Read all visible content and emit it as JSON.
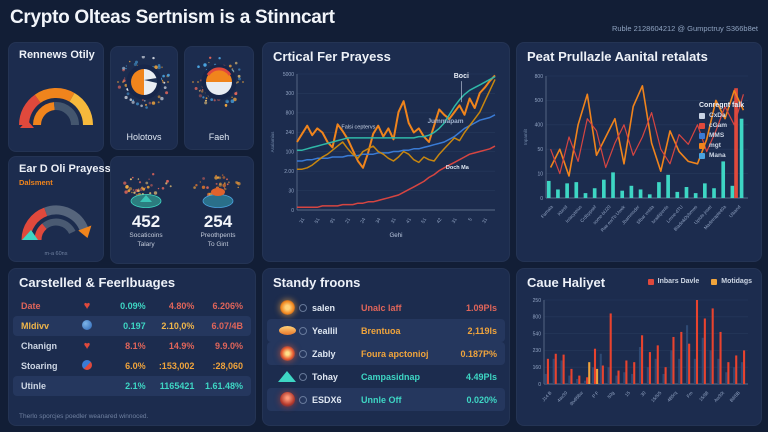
{
  "header": {
    "title": "Crypto Olteas Sertnism is a Stinncart",
    "meta": "Ruble 2128604212 @ Gumpctruy S366b8et"
  },
  "panels": {
    "renews": {
      "title": "Rennews Otily"
    },
    "eard": {
      "title": "Ear D Oli Prayess",
      "subtitle": "Dalsment",
      "caption": "m-a 60ns"
    },
    "emblems": [
      {
        "label": "Holotovs"
      },
      {
        "label": "Faeh"
      }
    ],
    "stats": [
      {
        "value": "452",
        "label1": "Socaticoins",
        "label2": "Talary"
      },
      {
        "value": "254",
        "label1": "Preothpents",
        "label2": "To Gint"
      }
    ],
    "critical": {
      "title": "Crtical Fer Prayess"
    },
    "peat": {
      "title": "Peat Prullazle Aanital retalats",
      "legend_title": "Conregnt falk",
      "legend": [
        {
          "label": "CxDa",
          "color": "#c9d4e6"
        },
        {
          "label": "cGam",
          "color": "#e0493c"
        },
        {
          "label": "MMS",
          "color": "#3a7bd5"
        },
        {
          "label": "mgt",
          "color": "#f0841c"
        },
        {
          "label": "Mana",
          "color": "#4aa3df"
        }
      ]
    },
    "table": {
      "title": "Carstelled & Feerlbuages",
      "footer": "Therlo sporcjes poedler weanared winnoced.",
      "rows": [
        {
          "name": "Date",
          "name_color": "#e0655a",
          "c1": "0.09%",
          "c1_color": "#3ed6c4",
          "c2": "4.80%",
          "c2_color": "#e0655a",
          "c3": "6.206%",
          "c3_color": "#e0655a"
        },
        {
          "name": "Mldivv",
          "name_color": "#f0b64a",
          "c1": "0.197",
          "c1_color": "#3ed6c4",
          "c2": "2.10,0%",
          "c2_color": "#f0b64a",
          "c3": "6.07/4B",
          "c3_color": "#e0655a"
        },
        {
          "name": "Chanign",
          "name_color": "#cdd6e4",
          "c1": "8.1%",
          "c1_color": "#e0655a",
          "c2": "14.9%",
          "c2_color": "#e0655a",
          "c3": "9.9.0%",
          "c3_color": "#e0655a"
        },
        {
          "name": "Stoaring",
          "name_color": "#cdd6e4",
          "c1": "6.0%",
          "c1_color": "#f0a43c",
          "c2": ":153,002",
          "c2_color": "#f0a43c",
          "c3": ":28,060",
          "c3_color": "#f0a43c"
        },
        {
          "name": "Utinle",
          "name_color": "#cdd6e4",
          "c1": "2.1%",
          "c1_color": "#3ed6c4",
          "c2": "1165421",
          "c2_color": "#3ed6c4",
          "c3": "1.61.48%",
          "c3_color": "#3ed6c4"
        }
      ]
    },
    "standy": {
      "title": "Standy froons",
      "rows": [
        {
          "name": "salen",
          "desc": "Unalc laff",
          "value": "1.09Pls",
          "color": "#e0655a"
        },
        {
          "name": "Yeallil",
          "desc": "Brentuoa",
          "value": "2,119ls",
          "color": "#f0a43c"
        },
        {
          "name": "Zably",
          "desc": "Foura apctonioj",
          "value": "0.187P%",
          "color": "#f0a43c"
        },
        {
          "name": "Tohay",
          "desc": "Campasidnap",
          "value": "4.49Pls",
          "color": "#3ed6c4"
        },
        {
          "name": "ESDX6",
          "desc": "Unnle Off",
          "value": "0.020%",
          "color": "#3ed6c4"
        }
      ]
    },
    "caue": {
      "title": "Caue Haliyet",
      "legend": [
        {
          "label": "Inbars Davle",
          "color": "#e0493c"
        },
        {
          "label": "Motidags",
          "color": "#f0a43c"
        }
      ]
    }
  },
  "chart_data": [
    {
      "id": "critical",
      "type": "line",
      "title": "Crtical Fer Prayess",
      "xlabel": "Gehi",
      "ylabel": "Asalamias",
      "yticks": [
        "5000",
        "300",
        "800",
        "240",
        "100",
        "2.00",
        "30",
        "0"
      ],
      "xticks": [
        "31",
        "51",
        "91",
        "21",
        "24",
        "34",
        "31",
        "41",
        "51",
        "42",
        "31",
        "5",
        "31"
      ],
      "series": [
        {
          "name": "orange",
          "color": "#f0841c",
          "width": 2,
          "values": [
            50,
            56,
            62,
            55,
            60,
            57,
            50,
            46,
            63,
            58,
            52,
            44,
            36,
            31,
            42,
            56,
            62,
            54,
            60,
            52,
            72,
            80,
            64,
            57,
            60,
            54,
            50,
            62,
            74,
            70,
            67,
            72,
            77,
            70,
            82,
            75,
            86,
            90,
            95,
            99
          ]
        },
        {
          "name": "blue",
          "color": "#3a7bd5",
          "width": 1.5,
          "values": [
            36,
            36,
            37,
            37,
            38,
            38,
            38,
            39,
            39,
            39,
            40,
            40,
            40,
            41,
            41,
            41,
            42,
            42,
            42,
            43,
            43,
            44,
            44,
            45,
            45,
            46,
            47,
            48,
            49,
            50,
            52,
            54,
            57,
            60,
            62,
            64,
            66,
            67,
            68,
            70
          ]
        },
        {
          "name": "teal",
          "color": "#2fb8a8",
          "width": 1.5,
          "values": [
            44,
            44,
            45,
            46,
            47,
            48,
            49,
            50,
            51,
            52,
            53,
            53,
            53,
            53,
            53,
            53,
            53,
            53,
            53,
            53,
            53,
            53,
            53,
            53,
            54,
            54,
            55,
            57,
            60,
            64,
            70,
            76,
            81,
            85,
            88,
            90,
            92,
            94,
            96,
            98
          ]
        },
        {
          "name": "dark-yellow",
          "color": "#c7860f",
          "width": 1.5,
          "values": [
            30,
            30,
            31,
            33,
            36,
            39,
            41,
            44,
            47,
            50,
            45,
            41,
            38,
            43,
            45,
            47,
            43,
            41,
            38,
            36,
            39,
            43,
            41,
            37,
            35,
            39,
            37,
            36,
            41,
            45,
            49,
            53,
            51,
            57,
            62,
            67,
            72,
            80,
            88,
            96
          ]
        },
        {
          "name": "red",
          "color": "#d64541",
          "width": 1.5,
          "values": [
            2,
            2,
            2,
            2,
            2,
            3,
            3,
            3,
            3,
            4,
            4,
            4,
            5,
            5,
            6,
            6,
            7,
            8,
            9,
            10,
            11,
            13,
            15,
            17,
            19,
            21,
            24,
            26,
            29,
            31,
            33,
            35,
            37,
            39,
            41,
            42,
            43,
            44,
            45,
            47
          ]
        }
      ],
      "annotations": [
        {
          "text": "Boci",
          "x": 83,
          "y": 3,
          "color": "#e8eef7",
          "size": 7,
          "bold": true,
          "line": true
        },
        {
          "text": "Falsi ceptervs",
          "x": 31,
          "y": 40,
          "color": "#c9d4e6",
          "size": 5.5
        },
        {
          "text": "Jummapam",
          "x": 75,
          "y": 36,
          "color": "#9fb0cc",
          "size": 6.5,
          "bold": true
        },
        {
          "text": "Doch Ma",
          "x": 81,
          "y": 70,
          "color": "#dfe7f2",
          "size": 5.5,
          "bold": true
        }
      ]
    },
    {
      "id": "peat",
      "type": "combo",
      "title": "Peat Prullazle Aanital retalats",
      "ylabel": "Inpamlit",
      "xlabel": "",
      "yticks": [
        "800",
        "500",
        "400",
        "50",
        "10",
        "0"
      ],
      "xticks": [
        "Famala",
        "Kbirtd",
        "Inlacyteius",
        "Crdbypoef",
        "some-bU20",
        "Rae ewTb Uwek",
        "Jbammsder",
        "Sfbar vntda",
        "braditjrenls",
        "Lmne-dTU",
        "Blade&Dybmws",
        "Uplols jnset",
        "Madetraple40a",
        "Ulband"
      ],
      "bars": [
        {
          "name": "teal-bars",
          "color": "#3ed6c4",
          "values": [
            14,
            7,
            12,
            13,
            4,
            8,
            15,
            21,
            6,
            10,
            7,
            3,
            13,
            19,
            5,
            9,
            4,
            12,
            8,
            30,
            10,
            65
          ]
        },
        {
          "name": "red-bars",
          "color": "#e0493c",
          "values": [
            0,
            0,
            0,
            0,
            0,
            0,
            0,
            0,
            0,
            0,
            0,
            0,
            0,
            0,
            0,
            0,
            0,
            0,
            0,
            0,
            90,
            0
          ]
        }
      ],
      "lines": [
        {
          "name": "orange-line",
          "color": "#f0841c",
          "width": 1.6,
          "values": [
            25,
            40,
            18,
            60,
            85,
            35,
            50,
            65,
            28,
            75,
            92,
            45,
            22,
            55,
            38,
            30,
            28,
            48,
            80,
            65,
            88,
            72
          ]
        },
        {
          "name": "crimson-line",
          "color": "#d64541",
          "width": 1.2,
          "values": [
            40,
            20,
            50,
            30,
            65,
            55,
            25,
            45,
            60,
            35,
            50,
            70,
            40,
            28,
            52,
            44,
            60,
            38,
            55,
            75,
            60,
            85
          ]
        }
      ]
    },
    {
      "id": "caue",
      "type": "bar",
      "title": "Caue Haliyet",
      "xlabel": "",
      "ylabel": "",
      "yticks": [
        "250",
        "800",
        "540",
        "230",
        "160",
        "0"
      ],
      "xticks": [
        "J14 B",
        "4av30",
        "9tv858w",
        "P F",
        "50g",
        "15",
        "30",
        "15/5/5",
        "4B5rq",
        "Fm",
        "15/88",
        "Aw30t",
        "B8/8B"
      ],
      "bars": [
        {
          "name": "navy-bars",
          "color": "#2e4a74",
          "values": [
            12,
            30,
            28,
            10,
            6,
            4,
            20,
            36,
            20,
            10,
            14,
            12,
            44,
            20,
            30,
            12,
            40,
            30,
            70,
            30,
            55,
            40,
            30,
            14,
            20,
            26
          ]
        },
        {
          "name": "red-bars",
          "color": "#e8432e",
          "values": [
            30,
            36,
            35,
            18,
            10,
            8,
            42,
            22,
            84,
            16,
            28,
            26,
            58,
            38,
            46,
            20,
            56,
            62,
            48,
            100,
            78,
            90,
            62,
            26,
            34,
            40
          ]
        },
        {
          "name": "orange-bars",
          "color": "#f0a43c",
          "values": [
            0,
            0,
            0,
            0,
            0,
            26,
            18,
            0,
            0,
            0,
            0,
            0,
            0,
            0,
            0,
            0,
            0,
            0,
            0,
            0,
            0,
            0,
            0,
            0,
            0,
            0
          ]
        }
      ]
    }
  ]
}
